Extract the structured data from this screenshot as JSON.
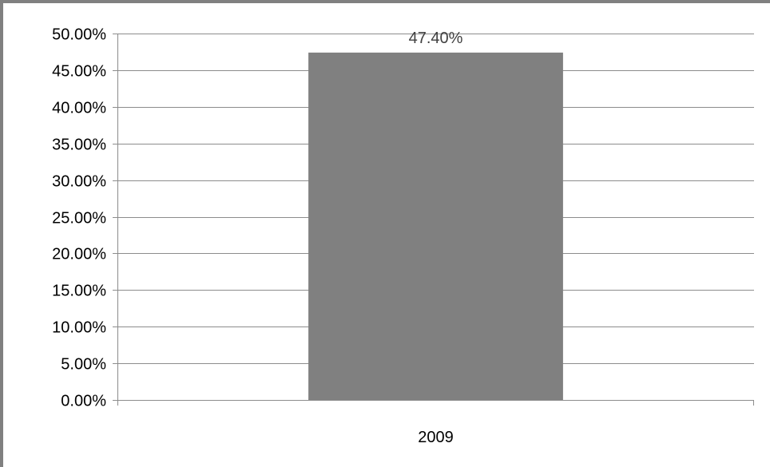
{
  "chart_data": {
    "type": "bar",
    "categories": [
      "2009"
    ],
    "values": [
      47.4
    ],
    "value_labels": [
      "47.40%"
    ],
    "ylim": [
      0,
      50
    ],
    "yticks": [
      0,
      5,
      10,
      15,
      20,
      25,
      30,
      35,
      40,
      45,
      50
    ],
    "ytick_labels": [
      "0.00%",
      "5.00%",
      "10.00%",
      "15.00%",
      "20.00%",
      "25.00%",
      "30.00%",
      "35.00%",
      "40.00%",
      "45.00%",
      "50.00%"
    ],
    "grid": true,
    "legend": "none",
    "bar_color": "#808080"
  }
}
